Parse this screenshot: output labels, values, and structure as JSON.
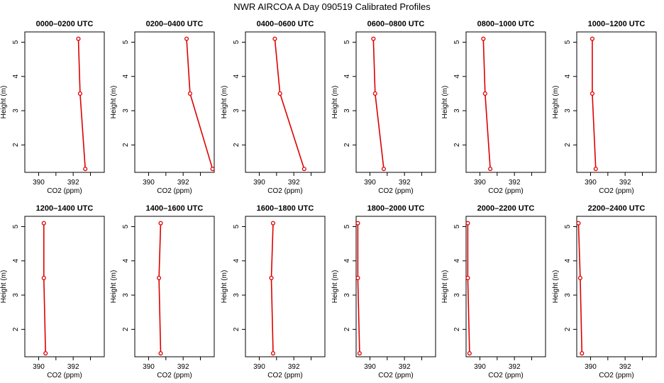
{
  "title": "NWR AIRCOA A  Day 090519  Calibrated Profiles",
  "colors": {
    "series": "#dd0000",
    "axis": "#000000",
    "background": "#ffffff"
  },
  "chart_data": [
    {
      "type": "line",
      "title": "0000–0200 UTC",
      "xlabel": "CO2 (ppm)",
      "ylabel": "Height (m)",
      "x": [
        392.3,
        392.4,
        392.7
      ],
      "y": [
        5.1,
        3.5,
        1.3
      ],
      "xlim": [
        389.2,
        393.8
      ],
      "ylim": [
        1.2,
        5.3
      ],
      "xticks": [
        "390",
        "392"
      ],
      "yticks": [
        "2",
        "3",
        "4",
        "5"
      ]
    },
    {
      "type": "line",
      "title": "0200–0400 UTC",
      "xlabel": "CO2 (ppm)",
      "ylabel": "Height (m)",
      "x": [
        392.2,
        392.4,
        393.7
      ],
      "y": [
        5.1,
        3.5,
        1.3
      ],
      "xlim": [
        389.2,
        393.8
      ],
      "ylim": [
        1.2,
        5.3
      ],
      "xticks": [
        "390",
        "392"
      ],
      "yticks": [
        "2",
        "3",
        "4",
        "5"
      ]
    },
    {
      "type": "line",
      "title": "0400–0600 UTC",
      "xlabel": "CO2 (ppm)",
      "ylabel": "Height (m)",
      "x": [
        390.9,
        391.2,
        392.6
      ],
      "y": [
        5.1,
        3.5,
        1.3
      ],
      "xlim": [
        389.2,
        393.8
      ],
      "ylim": [
        1.2,
        5.3
      ],
      "xticks": [
        "390",
        "392"
      ],
      "yticks": [
        "2",
        "3",
        "4",
        "5"
      ]
    },
    {
      "type": "line",
      "title": "0600–0800 UTC",
      "xlabel": "CO2 (ppm)",
      "ylabel": "Height (m)",
      "x": [
        390.2,
        390.3,
        390.8
      ],
      "y": [
        5.1,
        3.5,
        1.3
      ],
      "xlim": [
        389.2,
        393.8
      ],
      "ylim": [
        1.2,
        5.3
      ],
      "xticks": [
        "390",
        "392"
      ],
      "yticks": [
        "2",
        "3",
        "4",
        "5"
      ]
    },
    {
      "type": "line",
      "title": "0800–1000 UTC",
      "xlabel": "CO2 (ppm)",
      "ylabel": "Height (m)",
      "x": [
        390.2,
        390.3,
        390.6
      ],
      "y": [
        5.1,
        3.5,
        1.3
      ],
      "xlim": [
        389.2,
        393.8
      ],
      "ylim": [
        1.2,
        5.3
      ],
      "xticks": [
        "390",
        "392"
      ],
      "yticks": [
        "2",
        "3",
        "4",
        "5"
      ]
    },
    {
      "type": "line",
      "title": "1000–1200 UTC",
      "xlabel": "CO2 (ppm)",
      "ylabel": "Height (m)",
      "x": [
        390.1,
        390.1,
        390.3
      ],
      "y": [
        5.1,
        3.5,
        1.3
      ],
      "xlim": [
        389.2,
        393.8
      ],
      "ylim": [
        1.2,
        5.3
      ],
      "xticks": [
        "390",
        "392"
      ],
      "yticks": [
        "2",
        "3",
        "4",
        "5"
      ]
    },
    {
      "type": "line",
      "title": "1200–1400 UTC",
      "xlabel": "CO2 (ppm)",
      "ylabel": "Height (m)",
      "x": [
        390.3,
        390.3,
        390.4
      ],
      "y": [
        5.1,
        3.5,
        1.3
      ],
      "xlim": [
        389.2,
        393.8
      ],
      "ylim": [
        1.2,
        5.3
      ],
      "xticks": [
        "390",
        "392"
      ],
      "yticks": [
        "2",
        "3",
        "4",
        "5"
      ]
    },
    {
      "type": "line",
      "title": "1400–1600 UTC",
      "xlabel": "CO2 (ppm)",
      "ylabel": "Height (m)",
      "x": [
        390.7,
        390.6,
        390.7
      ],
      "y": [
        5.1,
        3.5,
        1.3
      ],
      "xlim": [
        389.2,
        393.8
      ],
      "ylim": [
        1.2,
        5.3
      ],
      "xticks": [
        "390",
        "392"
      ],
      "yticks": [
        "2",
        "3",
        "4",
        "5"
      ]
    },
    {
      "type": "line",
      "title": "1600–1800 UTC",
      "xlabel": "CO2 (ppm)",
      "ylabel": "Height (m)",
      "x": [
        390.8,
        390.7,
        390.8
      ],
      "y": [
        5.1,
        3.5,
        1.3
      ],
      "xlim": [
        389.2,
        393.8
      ],
      "ylim": [
        1.2,
        5.3
      ],
      "xticks": [
        "390",
        "392"
      ],
      "yticks": [
        "2",
        "3",
        "4",
        "5"
      ]
    },
    {
      "type": "line",
      "title": "1800–2000 UTC",
      "xlabel": "CO2 (ppm)",
      "ylabel": "Height (m)",
      "x": [
        389.3,
        389.3,
        389.4
      ],
      "y": [
        5.1,
        3.5,
        1.3
      ],
      "xlim": [
        389.2,
        393.8
      ],
      "ylim": [
        1.2,
        5.3
      ],
      "xticks": [
        "390",
        "392"
      ],
      "yticks": [
        "2",
        "3",
        "4",
        "5"
      ]
    },
    {
      "type": "line",
      "title": "2000–2200 UTC",
      "xlabel": "CO2 (ppm)",
      "ylabel": "Height (m)",
      "x": [
        389.3,
        389.3,
        389.4
      ],
      "y": [
        5.1,
        3.5,
        1.3
      ],
      "xlim": [
        389.2,
        393.8
      ],
      "ylim": [
        1.2,
        5.3
      ],
      "xticks": [
        "390",
        "392"
      ],
      "yticks": [
        "2",
        "3",
        "4",
        "5"
      ]
    },
    {
      "type": "line",
      "title": "2200–2400 UTC",
      "xlabel": "CO2 (ppm)",
      "ylabel": "Height (m)",
      "x": [
        389.3,
        389.4,
        389.5
      ],
      "y": [
        5.1,
        3.5,
        1.3
      ],
      "xlim": [
        389.2,
        393.8
      ],
      "ylim": [
        1.2,
        5.3
      ],
      "xticks": [
        "390",
        "392"
      ],
      "yticks": [
        "2",
        "3",
        "4",
        "5"
      ]
    }
  ]
}
